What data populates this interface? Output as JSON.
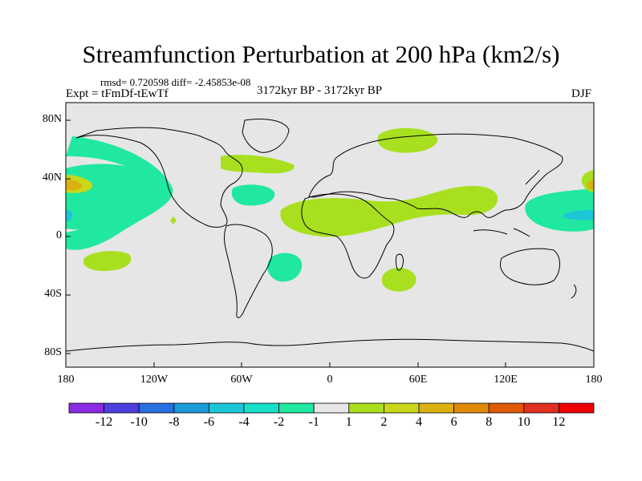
{
  "title": "Streamfunction Perturbation at 200 hPa (km2/s)",
  "stats": "rmsd= 0.720598 diff= -2.45853e-08",
  "experiment": "Expt = tFmDf-tEwTf",
  "period": "3172kyr BP - 3172kyr BP",
  "season": "DJF",
  "lat_labels": [
    "80N",
    "40N",
    "0",
    "40S",
    "80S"
  ],
  "lon_labels": [
    "180",
    "120W",
    "60W",
    "0",
    "60E",
    "120E",
    "180"
  ],
  "colorbar": {
    "labels": [
      "-12",
      "-10",
      "-8",
      "-6",
      "-4",
      "-2",
      "-1",
      "1",
      "2",
      "4",
      "6",
      "8",
      "10",
      "12"
    ],
    "colors": [
      "#8a2be2",
      "#4b3fe0",
      "#2a6fe0",
      "#1b9ad8",
      "#1cc6d8",
      "#18e0c8",
      "#20e8a0",
      "#e6e6e6",
      "#a8e020",
      "#c8d818",
      "#dcb010",
      "#e08a08",
      "#e05a05",
      "#e03020",
      "#ee0000"
    ]
  },
  "colors": {
    "land_bg": "#e6e6e6",
    "neg_small": "#20e8a0",
    "neg_mid": "#1cc6d8",
    "pos_small": "#a8e020",
    "pos_mid": "#dcb010"
  }
}
